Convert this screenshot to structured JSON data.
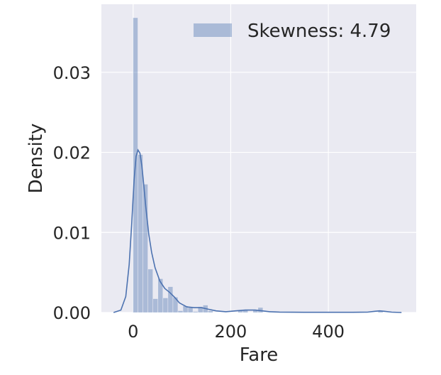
{
  "chart_data": {
    "type": "bar",
    "subtype": "histogram-with-kde",
    "xlabel": "Fare",
    "ylabel": "Density",
    "xlim": [
      -65,
      580
    ],
    "ylim": [
      0,
      0.0385
    ],
    "x_ticks": [
      {
        "value": 0,
        "label": "0"
      },
      {
        "value": 200,
        "label": "200"
      },
      {
        "value": 400,
        "label": "400"
      }
    ],
    "y_ticks": [
      {
        "value": 0.0,
        "label": "0.00"
      },
      {
        "value": 0.01,
        "label": "0.01"
      },
      {
        "value": 0.02,
        "label": "0.02"
      },
      {
        "value": 0.03,
        "label": "0.03"
      }
    ],
    "grid": true,
    "legend": {
      "placement": "top-right",
      "entries": [
        "Skewness: 4.79"
      ]
    },
    "colors": {
      "background": "#eaeaf2",
      "bar": "#4c72b0",
      "kde": "#4c72b0",
      "grid": "#ffffff"
    },
    "bin_width": 10.25,
    "bins": [
      {
        "x0": 0.0,
        "density": 0.0368
      },
      {
        "x0": 10.25,
        "density": 0.0197
      },
      {
        "x0": 20.5,
        "density": 0.016
      },
      {
        "x0": 30.75,
        "density": 0.0054
      },
      {
        "x0": 41.0,
        "density": 0.0017
      },
      {
        "x0": 51.25,
        "density": 0.0042
      },
      {
        "x0": 61.5,
        "density": 0.0018
      },
      {
        "x0": 71.75,
        "density": 0.0032
      },
      {
        "x0": 82.0,
        "density": 0.0019
      },
      {
        "x0": 92.25,
        "density": 0.0002
      },
      {
        "x0": 102.5,
        "density": 0.0008
      },
      {
        "x0": 112.75,
        "density": 0.0006
      },
      {
        "x0": 123.0,
        "density": 0.0001
      },
      {
        "x0": 133.25,
        "density": 0.0007
      },
      {
        "x0": 143.5,
        "density": 0.0009
      },
      {
        "x0": 153.75,
        "density": 0.0002
      },
      {
        "x0": 215.25,
        "density": 0.0003
      },
      {
        "x0": 225.5,
        "density": 0.0003
      },
      {
        "x0": 246.0,
        "density": 0.0003
      },
      {
        "x0": 256.25,
        "density": 0.0006
      },
      {
        "x0": 502.25,
        "density": 0.0002
      }
    ],
    "kde": {
      "x": [
        -40,
        -25,
        -15,
        -8,
        -3,
        2,
        6,
        10,
        14,
        18,
        22,
        26,
        32,
        38,
        45,
        55,
        65,
        75,
        85,
        95,
        110,
        125,
        140,
        155,
        170,
        190,
        210,
        230,
        250,
        265,
        280,
        300,
        350,
        400,
        450,
        480,
        495,
        505,
        515,
        530,
        550
      ],
      "y": [
        0,
        0.0003,
        0.002,
        0.006,
        0.011,
        0.0165,
        0.0195,
        0.0203,
        0.0199,
        0.0183,
        0.0158,
        0.0132,
        0.0098,
        0.0075,
        0.0056,
        0.0039,
        0.003,
        0.0025,
        0.0019,
        0.0012,
        0.0007,
        0.0006,
        0.0006,
        0.0004,
        0.0002,
        0.0001,
        0.0002,
        0.0003,
        0.0003,
        0.0002,
        0.0001,
        5e-05,
        3e-05,
        3e-05,
        3e-05,
        4e-05,
        0.00015,
        0.0002,
        0.00015,
        4e-05,
        0
      ]
    }
  }
}
